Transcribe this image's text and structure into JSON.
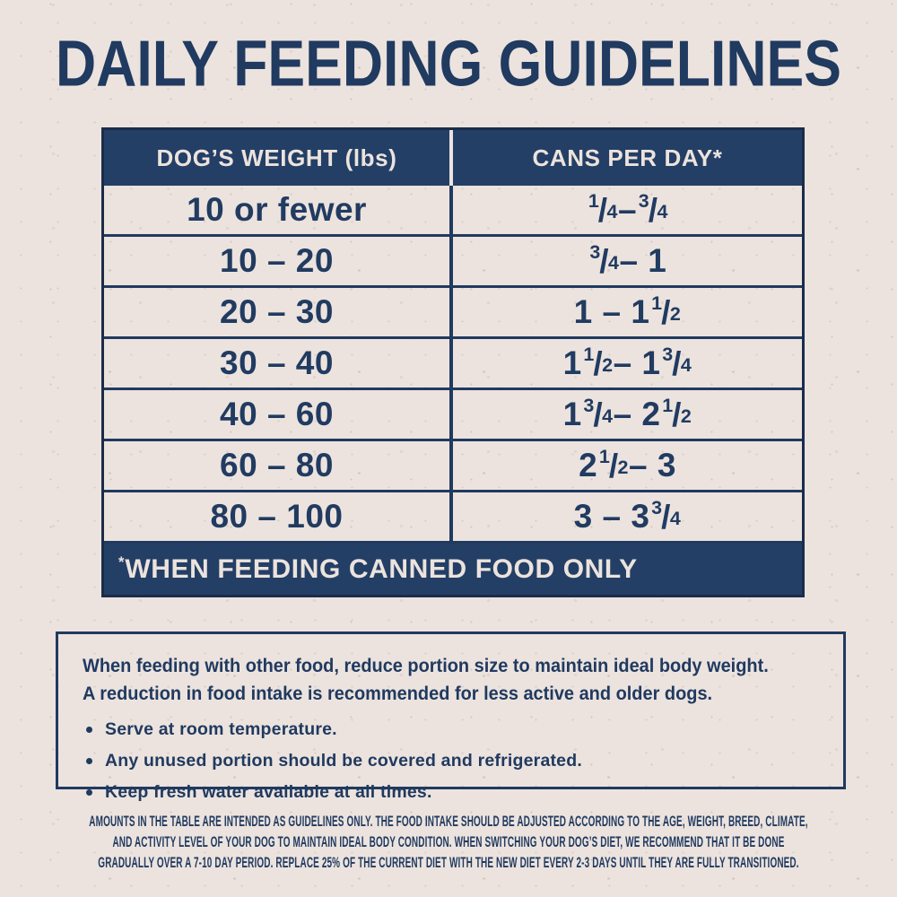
{
  "page": {
    "title": "DAILY FEEDING GUIDELINES"
  },
  "colors": {
    "navy": "#203a60",
    "navy_dark": "#1b2c49",
    "band_navy": "#233f66",
    "cream": "#ece3dd",
    "background": "#ece3de"
  },
  "table": {
    "columns": [
      {
        "label": "DOG’S WEIGHT (lbs)"
      },
      {
        "label": "CANS PER DAY*"
      }
    ],
    "rows": [
      {
        "weight": "10 or fewer",
        "cans": "1/4 – 3/4"
      },
      {
        "weight": "10 – 20",
        "cans": "3/4 – 1"
      },
      {
        "weight": "20 – 30",
        "cans": "1 – 1 1/2"
      },
      {
        "weight": "30 – 40",
        "cans": "1 1/2 – 1 3/4"
      },
      {
        "weight": "40 – 60",
        "cans": "1 3/4 – 2 1/2"
      },
      {
        "weight": "60 – 80",
        "cans": "2 1/2 – 3"
      },
      {
        "weight": "80 – 100",
        "cans": "3 – 3 3/4"
      }
    ],
    "footnote": "*WHEN FEEDING CANNED FOOD ONLY"
  },
  "info_box": {
    "intro_lines": [
      "When feeding with other food, reduce portion size to maintain ideal body weight.",
      "A reduction in food intake is recommended for less active and older dogs."
    ],
    "bullets": [
      "Serve at room temperature.",
      "Any unused portion should be covered and refrigerated.",
      "Keep fresh water available at all times."
    ]
  },
  "fine_print": {
    "lines": [
      "AMOUNTS IN THE TABLE ARE INTENDED AS GUIDELINES ONLY. THE FOOD INTAKE SHOULD BE ADJUSTED ACCORDING TO THE AGE, WEIGHT, BREED, CLIMATE,",
      "AND ACTIVITY LEVEL OF YOUR DOG TO MAINTAIN IDEAL BODY CONDITION. WHEN SWITCHING YOUR DOG’S DIET, WE RECOMMEND THAT IT BE DONE",
      "GRADUALLY OVER A 7-10 DAY PERIOD. REPLACE 25% OF THE CURRENT DIET WITH THE NEW DIET EVERY 2-3 DAYS UNTIL THEY ARE FULLY TRANSITIONED."
    ]
  }
}
